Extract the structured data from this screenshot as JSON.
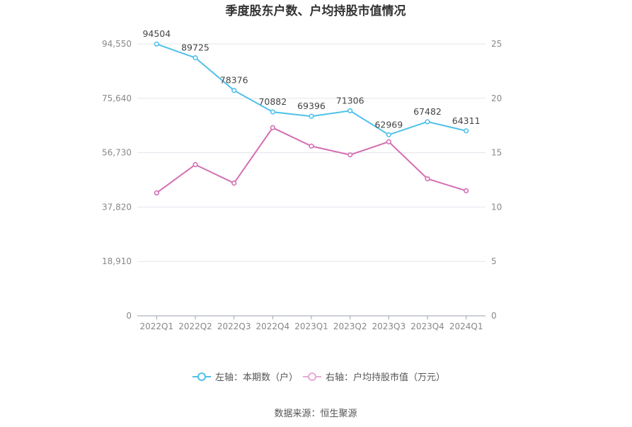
{
  "chart_data": {
    "type": "line",
    "title": "季度股东户数、户均持股市值情况",
    "categories": [
      "2022Q1",
      "2022Q2",
      "2022Q3",
      "2022Q4",
      "2023Q1",
      "2023Q2",
      "2023Q3",
      "2023Q4",
      "2024Q1"
    ],
    "left_axis": {
      "ticks": [
        "0",
        "18,910",
        "37,820",
        "56,730",
        "75,640",
        "94,550"
      ],
      "tick_values": [
        0,
        18910,
        37820,
        56730,
        75640,
        94550
      ],
      "ylim": [
        0,
        94550
      ]
    },
    "right_axis": {
      "ticks": [
        "0",
        "5",
        "10",
        "15",
        "20",
        "25"
      ],
      "tick_values": [
        0,
        5,
        10,
        15,
        20,
        25
      ],
      "ylim": [
        0,
        25
      ]
    },
    "series": [
      {
        "name": "左轴：本期数（户）",
        "axis": "left",
        "color": "#4fc0ea",
        "values": [
          94504,
          89725,
          78376,
          70882,
          69396,
          71306,
          62969,
          67482,
          64311
        ],
        "labels": [
          "94504",
          "89725",
          "78376",
          "70882",
          "69396",
          "71306",
          "62969",
          "67482",
          "64311"
        ]
      },
      {
        "name": "右轴：户均持股市值（万元）",
        "axis": "right",
        "color": "#d46eb3",
        "values": [
          11.3,
          13.9,
          12.2,
          17.3,
          15.6,
          14.8,
          16.0,
          12.6,
          11.5
        ]
      }
    ],
    "grid": true,
    "legend_position": "bottom"
  },
  "source": "数据来源：恒生聚源"
}
